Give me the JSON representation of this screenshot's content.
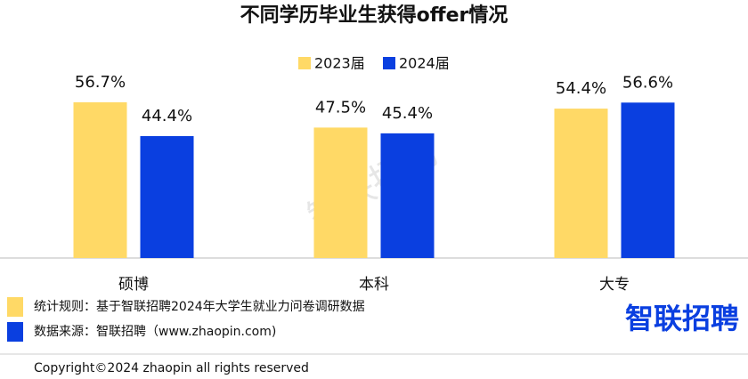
{
  "chart_data": {
    "type": "bar",
    "title": "不同学历毕业生获得offer情况",
    "categories": [
      "硕博",
      "本科",
      "大专"
    ],
    "series": [
      {
        "name": "2023届",
        "color": "#FFD966",
        "values": [
          56.7,
          47.5,
          54.4
        ],
        "value_labels": [
          "56.7%",
          "47.5%",
          "54.4%"
        ]
      },
      {
        "name": "2024届",
        "color": "#0A3FE0",
        "values": [
          44.4,
          45.4,
          56.6
        ],
        "value_labels": [
          "44.4%",
          "45.4%",
          "56.6%"
        ]
      }
    ]
  },
  "notes": [
    "统计规则：基于智联招聘2024年大学生就业力问卷调研数据",
    "数据来源：智联招聘（www.zhaopin.com)"
  ],
  "logo": "智联招聘",
  "watermark": "智联招聘",
  "copyright": "Copyright©2024 zhaopin all rights reserved"
}
